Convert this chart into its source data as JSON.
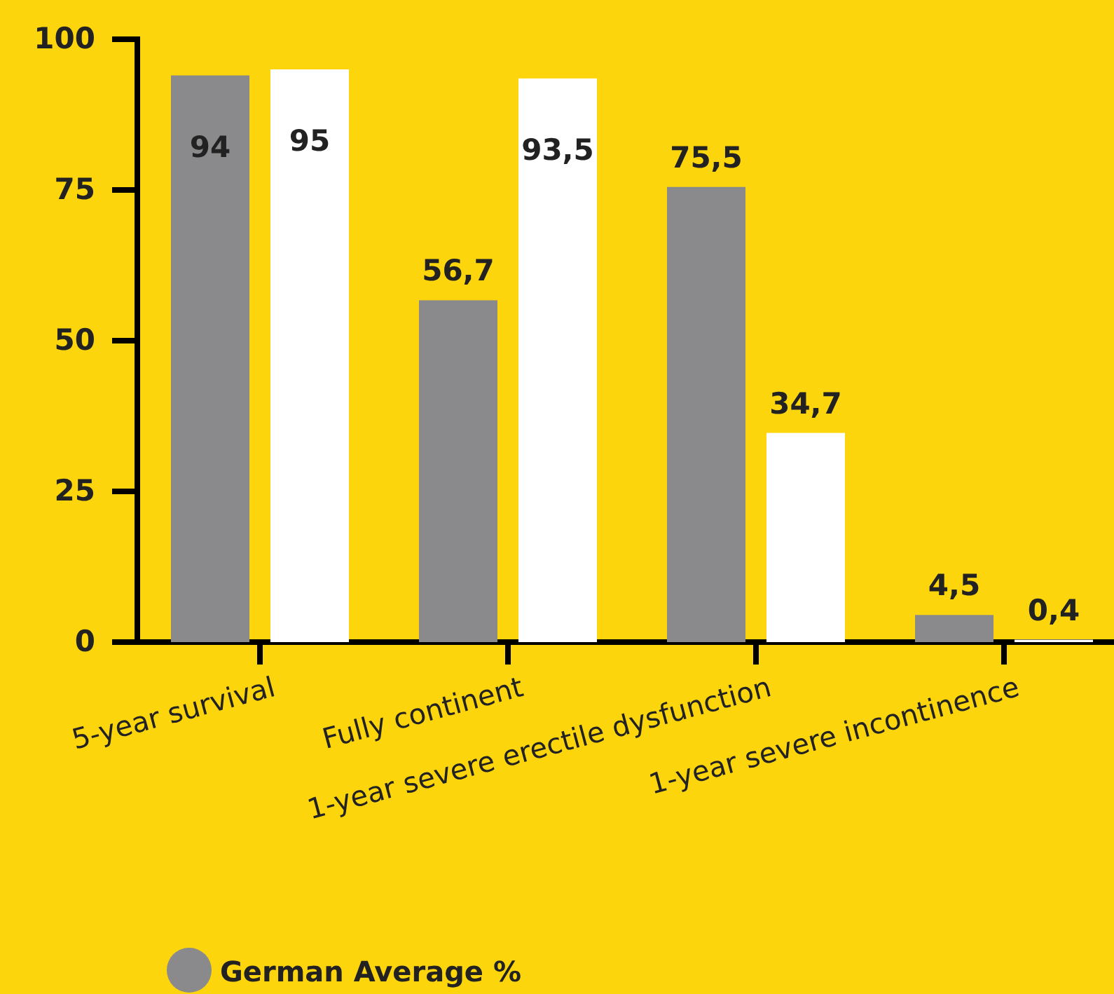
{
  "chart_data": {
    "type": "bar",
    "categories": [
      "5-year survival",
      "Fully continent",
      "1-year severe erectile dysfunction",
      "1-year severe incontinence"
    ],
    "series": [
      {
        "name": "German Average %",
        "color": "#8a8a8c",
        "values": [
          94,
          56.7,
          75.5,
          4.5
        ],
        "value_labels": [
          "94",
          "56,7",
          "75,5",
          "4,5"
        ]
      },
      {
        "color": "#ffffff",
        "values": [
          95,
          93.5,
          34.7,
          0.4
        ],
        "value_labels": [
          "95",
          "93,5",
          "34,7",
          "0,4"
        ]
      }
    ],
    "ylim": [
      0,
      100
    ],
    "yticks": [
      0,
      25,
      50,
      75,
      100
    ],
    "grid": false,
    "legend": "bottom"
  }
}
